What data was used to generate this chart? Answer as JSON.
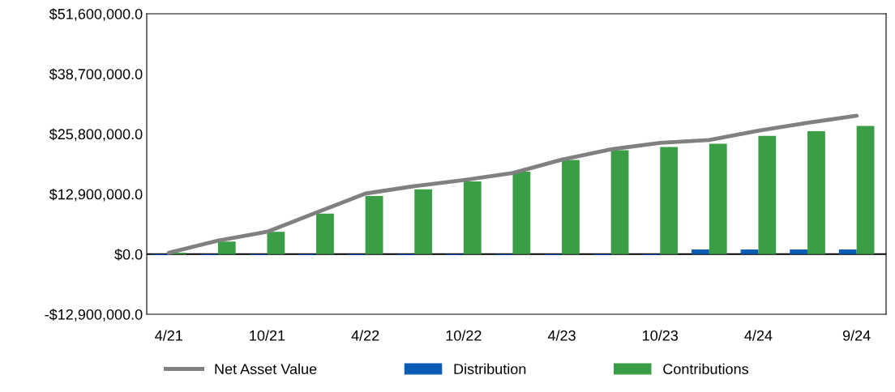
{
  "chart_data": {
    "type": "bar",
    "categories": [
      "4/21",
      null,
      "10/21",
      null,
      "4/22",
      null,
      "10/22",
      null,
      "4/23",
      null,
      "10/23",
      null,
      "4/24",
      null,
      "9/24"
    ],
    "series": [
      {
        "name": "Net Asset Value",
        "type": "line",
        "color": "#808080",
        "values": [
          300000,
          2900000,
          4800000,
          8900000,
          13000000,
          14600000,
          15900000,
          17400000,
          20300000,
          22500000,
          23900000,
          24500000,
          26500000,
          28200000,
          29700000
        ]
      },
      {
        "name": "Distribution",
        "color": "#0a5cb5",
        "values": [
          -200000,
          -200000,
          -200000,
          -200000,
          -200000,
          -200000,
          -200000,
          -200000,
          -200000,
          -200000,
          -200000,
          1000000,
          1000000,
          1000000,
          1000000
        ]
      },
      {
        "name": "Contributions",
        "color": "#3a9e47",
        "values": [
          300000,
          2700000,
          4800000,
          8700000,
          12500000,
          13900000,
          15600000,
          17700000,
          20200000,
          22300000,
          23000000,
          23700000,
          25400000,
          26400000,
          27500000
        ]
      }
    ],
    "ylim": [
      -12900000,
      51600000
    ],
    "yticks": [
      {
        "value": -12900000,
        "label": "-$12,900,000.0"
      },
      {
        "value": 0,
        "label": "$0.0"
      },
      {
        "value": 12900000,
        "label": "$12,900,000.0"
      },
      {
        "value": 25800000,
        "label": "$25,800,000.0"
      },
      {
        "value": 38700000,
        "label": "$38,700,000.0"
      },
      {
        "value": 51600000,
        "label": "$51,600,000.0"
      }
    ],
    "ref_lines": [
      {
        "axis": "y",
        "value": 0,
        "color": "#000000"
      }
    ],
    "grid": false,
    "legend": "bottom"
  }
}
